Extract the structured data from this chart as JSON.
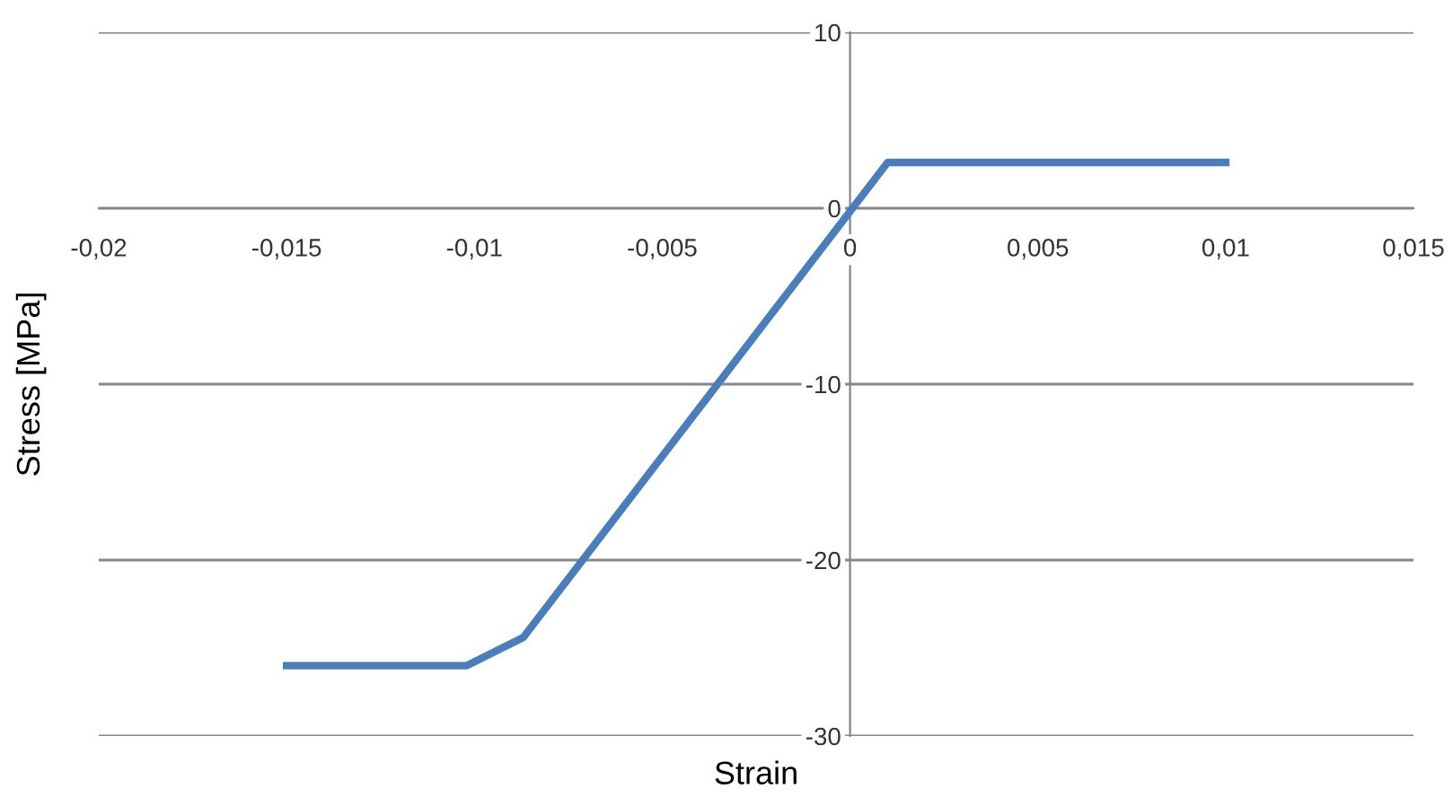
{
  "chart_data": {
    "type": "line",
    "xlabel": "Strain",
    "ylabel": "Stress [MPa]",
    "series": [
      {
        "color": "#4a7ebb",
        "x": [
          -0.015,
          -0.0102,
          -0.0087,
          0.001,
          0.01
        ],
        "values": [
          -26,
          -26,
          -24.4,
          2.6,
          2.6
        ]
      }
    ],
    "xlim": [
      -0.02,
      0.015
    ],
    "xticks": [
      {
        "value": -0.02,
        "label": "-0,02"
      },
      {
        "value": -0.015,
        "label": "-0,015"
      },
      {
        "value": -0.01,
        "label": "-0,01"
      },
      {
        "value": -0.005,
        "label": "-0,005"
      },
      {
        "value": 0,
        "label": "0"
      },
      {
        "value": 0.005,
        "label": "0,005"
      },
      {
        "value": 0.01,
        "label": "0,01"
      },
      {
        "value": 0.015,
        "label": "0,015"
      }
    ],
    "ylim": [
      -30,
      10
    ],
    "yticks": [
      -30,
      -20,
      -10,
      0,
      10
    ],
    "grid": "y",
    "legend": false,
    "marker": "none",
    "line_style": "solid"
  }
}
